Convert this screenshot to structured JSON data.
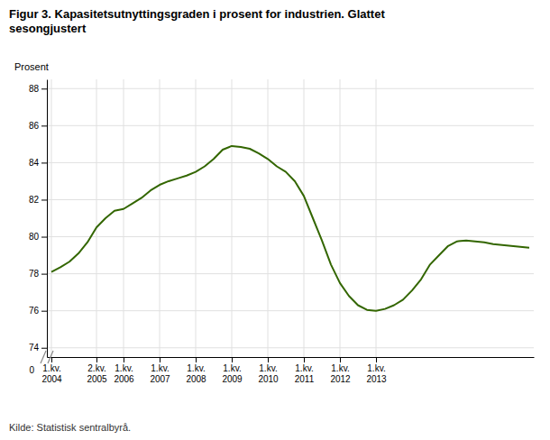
{
  "chart_data": {
    "type": "line",
    "title": "Figur 3. Kapasitetsutnyttingsgraden i prosent for industrien. Glattet\nsesongjustert",
    "y_label": "Prosent",
    "source": "Kilde: Statistisk sentralbyrå.",
    "annotations": [
      "0"
    ],
    "color": "#336600",
    "grid": true,
    "ylim": [
      73.5,
      88.5
    ],
    "yticks": [
      74,
      76,
      78,
      80,
      82,
      84,
      86,
      88
    ],
    "categories": [
      "1.kv.\n2004",
      null,
      null,
      null,
      null,
      "2.kv.\n2005",
      null,
      null,
      "1.kv.\n2006",
      null,
      null,
      null,
      "1.kv.\n2007",
      null,
      null,
      null,
      "1.kv.\n2008",
      null,
      null,
      null,
      "1.kv.\n2009",
      null,
      null,
      null,
      "1.kv.\n2010",
      null,
      null,
      null,
      "1.kv.\n2011",
      null,
      null,
      null,
      "1.kv.\n2012",
      null,
      null,
      null,
      "1.kv.\n2013",
      null,
      null,
      null,
      null,
      null,
      null,
      null,
      null,
      null,
      null,
      null,
      null,
      null,
      null,
      null,
      null,
      null
    ],
    "values": [
      78.1,
      78.35,
      78.65,
      79.1,
      79.7,
      80.5,
      81.0,
      81.4,
      81.5,
      81.8,
      82.1,
      82.5,
      82.8,
      83.0,
      83.15,
      83.3,
      83.5,
      83.8,
      84.2,
      84.7,
      84.9,
      84.85,
      84.75,
      84.5,
      84.2,
      83.8,
      83.5,
      83.0,
      82.2,
      81.0,
      79.8,
      78.5,
      77.5,
      76.8,
      76.3,
      76.05,
      76.0,
      76.1,
      76.3,
      76.6,
      77.1,
      77.7,
      78.5,
      79.0,
      79.5,
      79.75,
      79.8,
      79.75,
      79.7,
      79.6,
      79.55,
      79.5,
      79.45,
      79.4
    ]
  }
}
